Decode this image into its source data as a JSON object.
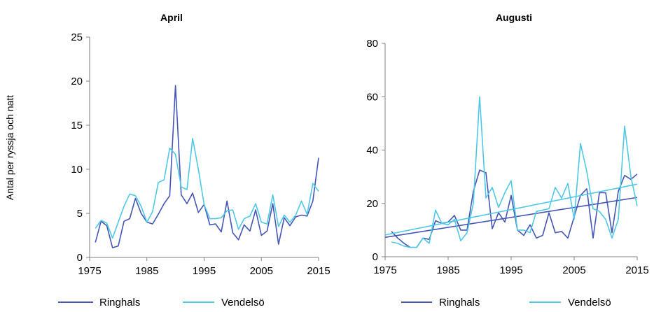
{
  "colors": {
    "Ringhals": "#4456b6",
    "Vendelsö": "#4fc8e8",
    "axis": "#808080"
  },
  "ylabel_shared": "Antal per ryssja och natt",
  "chart_data": [
    {
      "type": "line",
      "title": "April",
      "xlabel": "",
      "ylabel": "Antal per ryssja och natt",
      "xlim": [
        1975,
        2015
      ],
      "ylim": [
        0,
        25
      ],
      "xticks": [
        "1975",
        "1985",
        "1995",
        "2005",
        "2015"
      ],
      "yticks": [
        "0",
        "5",
        "10",
        "15",
        "20",
        "25"
      ],
      "legend_position": "bottom",
      "series": [
        {
          "name": "Ringhals",
          "x": [
            1976,
            1977,
            1978,
            1979,
            1980,
            1981,
            1982,
            1983,
            1984,
            1985,
            1986,
            1987,
            1988,
            1989,
            1990,
            1991,
            1992,
            1993,
            1994,
            1995,
            1996,
            1997,
            1998,
            1999,
            2000,
            2001,
            2002,
            2003,
            2004,
            2005,
            2006,
            2007,
            2008,
            2009,
            2010,
            2011,
            2012,
            2013,
            2014,
            2015
          ],
          "y": [
            1.7,
            4.1,
            3.6,
            1.1,
            1.3,
            4.1,
            4.4,
            6.7,
            5.0,
            4.0,
            3.8,
            4.9,
            6.1,
            7.0,
            19.5,
            7.1,
            6.1,
            7.3,
            5.1,
            6.0,
            3.7,
            3.8,
            2.9,
            6.4,
            2.8,
            2.0,
            3.7,
            3.0,
            5.4,
            2.5,
            3.0,
            6.1,
            1.5,
            4.5,
            3.6,
            4.6,
            4.8,
            4.7,
            6.4,
            11.3
          ]
        },
        {
          "name": "Vendelsö",
          "x": [
            1976,
            1977,
            1978,
            1979,
            1981,
            1982,
            1983,
            1984,
            1985,
            1986,
            1987,
            1988,
            1989,
            1990,
            1991,
            1992,
            1993,
            1994,
            1995,
            1996,
            1997,
            1998,
            1999,
            2000,
            2001,
            2002,
            2003,
            2004,
            2005,
            2006,
            2007,
            2008,
            2009,
            2010,
            2011,
            2012,
            2013,
            2014,
            2015
          ],
          "y": [
            3.3,
            4.2,
            3.9,
            2.2,
            5.8,
            7.2,
            7.0,
            5.8,
            4.0,
            5.2,
            8.5,
            8.8,
            12.4,
            11.7,
            8.0,
            7.7,
            13.5,
            10.0,
            6.0,
            4.4,
            4.4,
            4.5,
            5.3,
            5.4,
            3.2,
            4.4,
            4.7,
            6.1,
            4.0,
            3.8,
            7.1,
            3.5,
            4.8,
            4.0,
            4.8,
            6.4,
            4.9,
            8.4,
            7.5
          ]
        }
      ]
    },
    {
      "type": "line",
      "title": "Augusti",
      "xlabel": "",
      "ylabel": "",
      "xlim": [
        1975,
        2015
      ],
      "ylim": [
        0,
        80
      ],
      "xticks": [
        "1975",
        "1985",
        "1995",
        "2005",
        "2015"
      ],
      "yticks": [
        "0",
        "20",
        "40",
        "60",
        "80"
      ],
      "legend_position": "bottom",
      "trendlines": true,
      "series": [
        {
          "name": "Ringhals",
          "x": [
            1976,
            1977,
            1978,
            1979,
            1980,
            1981,
            1982,
            1983,
            1984,
            1985,
            1986,
            1987,
            1988,
            1989,
            1990,
            1991,
            1992,
            1993,
            1994,
            1995,
            1996,
            1997,
            1998,
            1999,
            2000,
            2001,
            2002,
            2003,
            2004,
            2005,
            2006,
            2007,
            2008,
            2009,
            2010,
            2011,
            2012,
            2013,
            2014,
            2015
          ],
          "y": [
            9.5,
            7.0,
            5.0,
            3.5,
            3.5,
            7.0,
            6.5,
            13.5,
            12.5,
            13.0,
            15.5,
            10.0,
            10.0,
            24.5,
            32.5,
            31.5,
            10.5,
            16.5,
            13.0,
            23.0,
            10.0,
            8.0,
            12.0,
            7.0,
            8.0,
            16.5,
            9.0,
            9.5,
            7.0,
            15.0,
            23.0,
            25.5,
            7.0,
            24.0,
            24.0,
            9.0,
            24.5,
            30.5,
            29.0,
            31.0
          ]
        },
        {
          "name": "Vendelsö",
          "x": [
            1976,
            1977,
            1978,
            1979,
            1980,
            1981,
            1982,
            1983,
            1984,
            1985,
            1986,
            1987,
            1988,
            1989,
            1990,
            1991,
            1992,
            1993,
            1994,
            1995,
            1996,
            1997,
            1998,
            1999,
            2000,
            2001,
            2002,
            2003,
            2004,
            2005,
            2006,
            2007,
            2008,
            2009,
            2010,
            2011,
            2012,
            2013,
            2014,
            2015
          ],
          "y": [
            5.5,
            5.0,
            4.0,
            3.5,
            3.5,
            7.0,
            5.0,
            17.5,
            12.5,
            12.0,
            14.0,
            6.0,
            9.0,
            20.0,
            60.0,
            22.0,
            26.0,
            18.5,
            24.0,
            28.5,
            10.0,
            10.0,
            9.0,
            17.0,
            17.5,
            18.0,
            26.0,
            22.0,
            27.5,
            14.0,
            42.5,
            32.0,
            18.0,
            17.0,
            14.0,
            7.0,
            14.0,
            49.0,
            30.0,
            19.0
          ]
        }
      ]
    }
  ]
}
